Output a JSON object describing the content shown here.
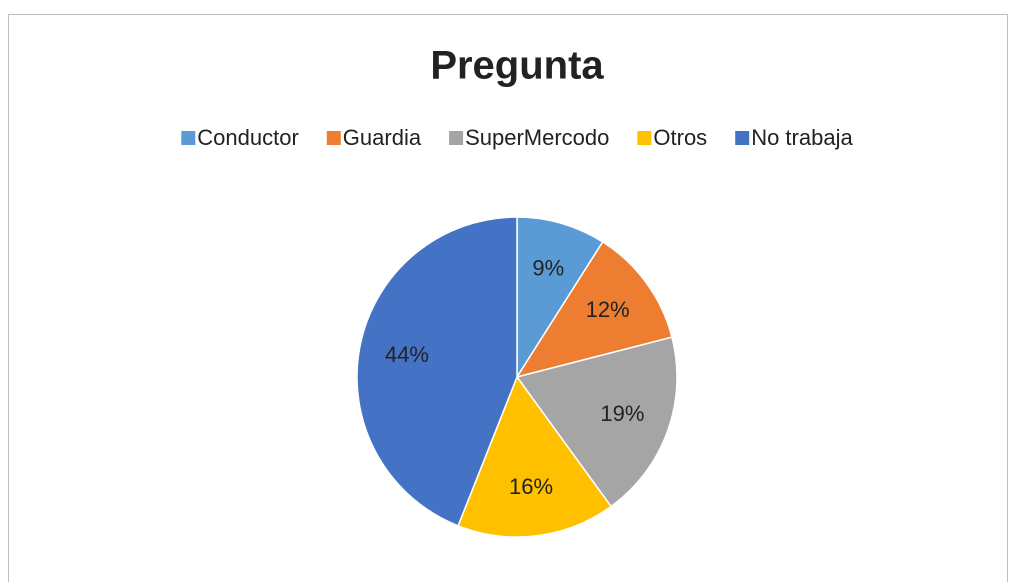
{
  "chart_data": {
    "type": "pie",
    "title": "Pregunta",
    "categories": [
      "Conductor",
      "Guardia",
      "SuperMercodo",
      "Otros",
      "No trabaja"
    ],
    "values": [
      9,
      12,
      19,
      16,
      44
    ],
    "value_labels": [
      "9%",
      "12%",
      "19%",
      "16%",
      "44%"
    ],
    "colors": [
      "#5b9bd5",
      "#ed7d31",
      "#a5a5a5",
      "#ffc000",
      "#4472c4"
    ],
    "legend": "top"
  }
}
